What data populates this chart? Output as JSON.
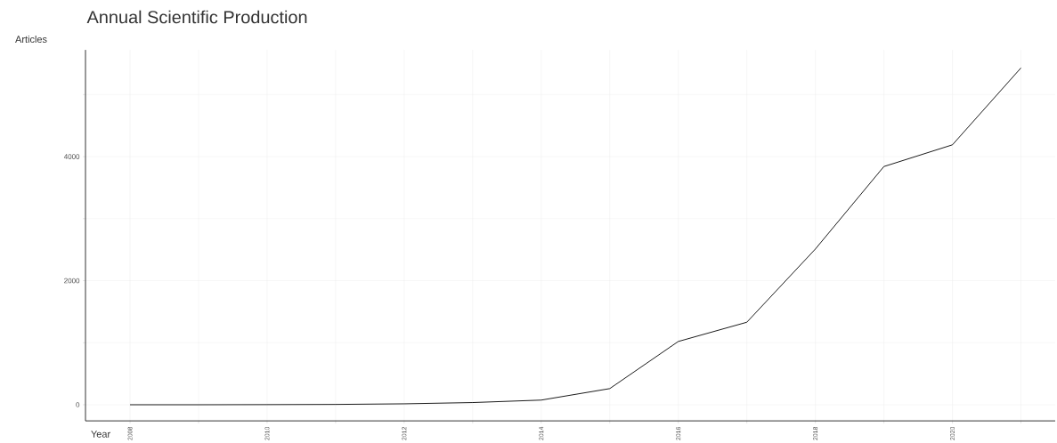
{
  "chart_data": {
    "type": "line",
    "title": "Annual Scientific Production",
    "xlabel": "Year",
    "ylabel": "Articles",
    "x": [
      2008,
      2009,
      2010,
      2011,
      2012,
      2013,
      2014,
      2015,
      2016,
      2017,
      2018,
      2019,
      2020,
      2021
    ],
    "series": [
      {
        "color": "#000000",
        "values": [
          0,
          0,
          2,
          5,
          15,
          35,
          75,
          260,
          1020,
          1330,
          2510,
          3840,
          4190,
          5430
        ]
      }
    ],
    "xlim": [
      2007.35,
      2021.5
    ],
    "ylim": [
      -260,
      5720
    ],
    "xticks": [
      2008,
      {
        "value": 2009,
        "label": null
      },
      2010,
      {
        "value": 2011,
        "label": null
      },
      2012,
      {
        "value": 2013,
        "label": null
      },
      2014,
      {
        "value": 2015,
        "label": null
      },
      2016,
      {
        "value": 2017,
        "label": null
      },
      2018,
      {
        "value": 2019,
        "label": null
      },
      2020,
      {
        "value": 2021,
        "label": null
      }
    ],
    "yticks": [
      0,
      {
        "value": 1000,
        "label": null
      },
      2000,
      {
        "value": 3000,
        "label": null
      },
      4000,
      {
        "value": 5000,
        "label": null
      }
    ],
    "grid": true
  }
}
